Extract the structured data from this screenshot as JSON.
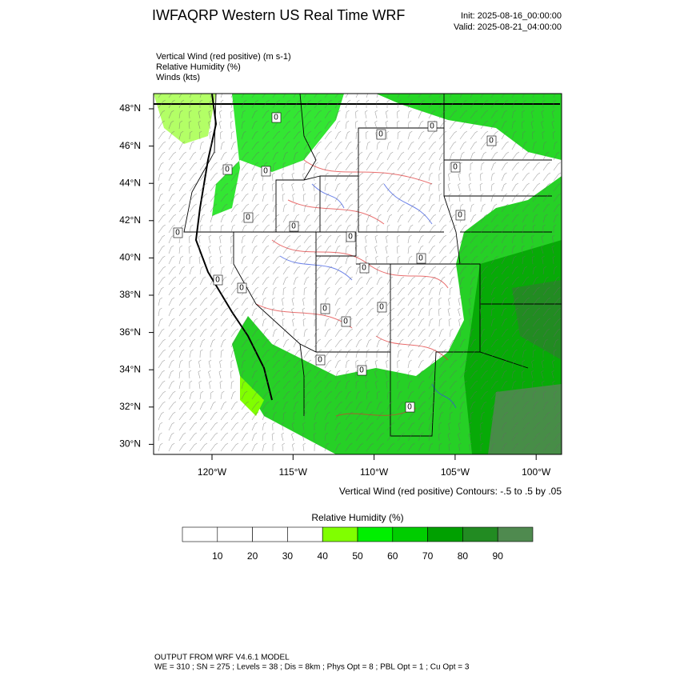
{
  "header": {
    "title": "IWFAQRP Western US Real Time WRF",
    "init": "Init: 2025-08-16_00:00:00",
    "valid": "Valid: 2025-08-21_04:00:00"
  },
  "fields": [
    "Vertical Wind (red positive)   (m s-1)",
    "Relative Humidity   (%)",
    "Winds   (kts)"
  ],
  "map": {
    "lat_labels": [
      "48°N",
      "46°N",
      "44°N",
      "42°N",
      "40°N",
      "38°N",
      "36°N",
      "34°N",
      "32°N",
      "30°N"
    ],
    "lon_labels": [
      "120°W",
      "115°W",
      "110°W",
      "105°W",
      "100°W"
    ],
    "contour_note": "Vertical Wind (red positive) Contours: -.5 to .5 by .05",
    "contour_labels": [
      "0",
      "0",
      "0",
      "0",
      "0",
      "0",
      "0",
      "0",
      "0",
      "0",
      "0",
      "0",
      "0",
      "0",
      "0",
      "0",
      "0",
      "0",
      "0",
      "0",
      "0",
      "0"
    ]
  },
  "colorbar": {
    "title": "Relative Humidity  (%)",
    "colors": [
      "#ffffff",
      "#ffffff",
      "#ffffff",
      "#ffffff",
      "#80ff00",
      "#00f000",
      "#00cd00",
      "#00a000",
      "#228b22",
      "#4f8a4f"
    ],
    "ticks": [
      10,
      20,
      30,
      40,
      50,
      60,
      70,
      80,
      90
    ]
  },
  "footer": {
    "line1": "OUTPUT FROM WRF V4.6.1 MODEL",
    "line2": "WE = 310 ; SN = 275 ; Levels = 38 ; Dis = 8km ; Phys Opt = 8 ; PBL Opt = 1 ; Cu Opt = 3"
  }
}
